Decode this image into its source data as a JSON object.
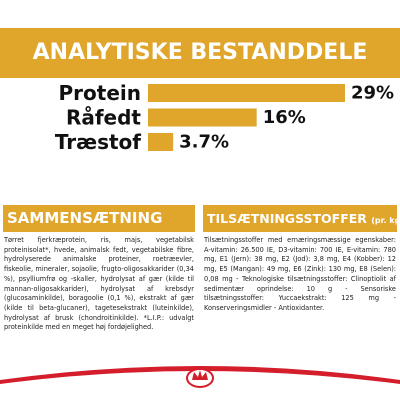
{
  "header": {
    "title": "ANALYTISKE BESTANDDELE"
  },
  "chart_data": {
    "type": "bar",
    "categories": [
      "Protein",
      "Råfedt",
      "Træstof"
    ],
    "values": [
      29,
      16,
      3.7
    ],
    "value_labels": [
      "29%",
      "16%",
      "3.7%"
    ],
    "color": "#e0a52b"
  },
  "sections": [
    {
      "title": "SAMMENSÆTNING",
      "text": "Tørret fjerkræprotein, ris, majs, vegetabilsk proteinisolat*, hvede, animalsk fedt, vegetabilske fibre, hydrolyserede animalske proteiner, roetræevler, fiskeolie, mineraler, sojaolie, frugto-oligosakkarider (0,34 %), psylliumfrø og -skaller, hydrolysat af gær (kilde til mannan-oligosakkarider), hydrolysat af krebsdyr (glucosaminkilde), boragoolie (0,1 %), ekstrakt af gær (kilde til beta-glucaner), tagetesekstrakt (luteinkilde), hydrolysat af brusk (chondroitinkilde). *L.I.P.: udvalgt proteinkilde med en meget høj fordøjelighed."
    },
    {
      "title": "TILSÆTNINGSSTOFFER",
      "subtitle": "(pr. kg)",
      "text": "Tilsætningsstoffer med ernæringsmæssige egenskaber: A-vitamin: 26.500 IE, D3-vitamin: 700 IE, E-vitamin: 780 mg, E1 (Jern): 38 mg, E2 (Jod): 3,8 mg, E4 (Kobber): 12 mg, E5 (Mangan): 49 mg, E6 (Zink): 130 mg, E8 (Selen): 0,08 mg - Teknologiske tilsætningsstoffer: Clinoptiolit af sedimentær oprindelse: 10 g - Sensoriske tilsætningsstoffer: Yuccaekstrakt: 125 mg - Konserveringsmidler - Antioxidanter."
    }
  ]
}
